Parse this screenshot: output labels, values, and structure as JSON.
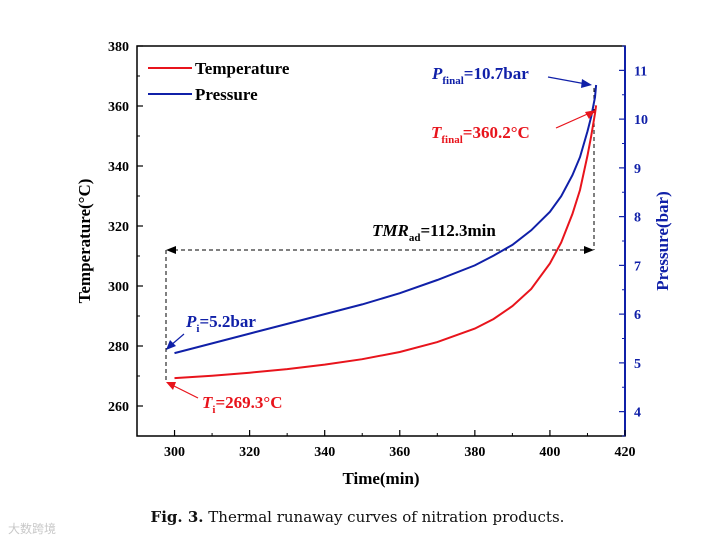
{
  "chart_data": {
    "type": "line",
    "xlabel": "Time(min)",
    "ylabel_left": "Temperature(°C)",
    "ylabel_right": "Pressure(bar)",
    "xlim": [
      290,
      420
    ],
    "ylim_left": [
      250,
      380
    ],
    "ylim_right": [
      3.5,
      11.5
    ],
    "x_ticks": [
      300,
      320,
      340,
      360,
      380,
      400,
      420
    ],
    "y_left_ticks": [
      260,
      280,
      300,
      320,
      340,
      360,
      380
    ],
    "y_right_ticks": [
      4,
      5,
      6,
      7,
      8,
      9,
      10,
      11
    ],
    "legend_position": "top-left",
    "series": [
      {
        "name": "Temperature",
        "axis": "left",
        "color": "#e8141c",
        "x": [
          300,
          310,
          320,
          330,
          340,
          350,
          360,
          370,
          380,
          385,
          390,
          395,
          400,
          403,
          406,
          408,
          410,
          411,
          412,
          412.3
        ],
        "y": [
          269.3,
          270.1,
          271.1,
          272.3,
          273.8,
          275.6,
          278.0,
          281.3,
          285.8,
          289.0,
          293.3,
          299.0,
          307.5,
          314.5,
          324.0,
          332.0,
          343.5,
          350.0,
          357.5,
          360.2
        ]
      },
      {
        "name": "Pressure",
        "axis": "right",
        "color": "#1020a8",
        "x": [
          300,
          310,
          320,
          330,
          340,
          350,
          360,
          370,
          380,
          385,
          390,
          395,
          400,
          403,
          406,
          408,
          410,
          411,
          412,
          412.3
        ],
        "y": [
          5.2,
          5.4,
          5.6,
          5.8,
          6.0,
          6.2,
          6.43,
          6.7,
          7.0,
          7.2,
          7.42,
          7.72,
          8.1,
          8.42,
          8.85,
          9.22,
          9.75,
          10.05,
          10.45,
          10.7
        ]
      }
    ],
    "annotations": {
      "p_final": {
        "main": "P",
        "sub": "final",
        "value": "=10.7bar"
      },
      "t_final": {
        "main": "T",
        "sub": "final",
        "value": "=360.2°C"
      },
      "tmr": {
        "main": "TMR",
        "sub": "ad",
        "value": "=112.3min"
      },
      "p_i": {
        "main": "P",
        "sub": "i",
        "value": "=5.2bar"
      },
      "t_i": {
        "main": "T",
        "sub": "i",
        "value": "=269.3°C"
      }
    }
  },
  "caption": {
    "fig_label": "Fig. 3.",
    "text": "Thermal runaway curves of nitration products."
  },
  "watermark": "大数跨境"
}
